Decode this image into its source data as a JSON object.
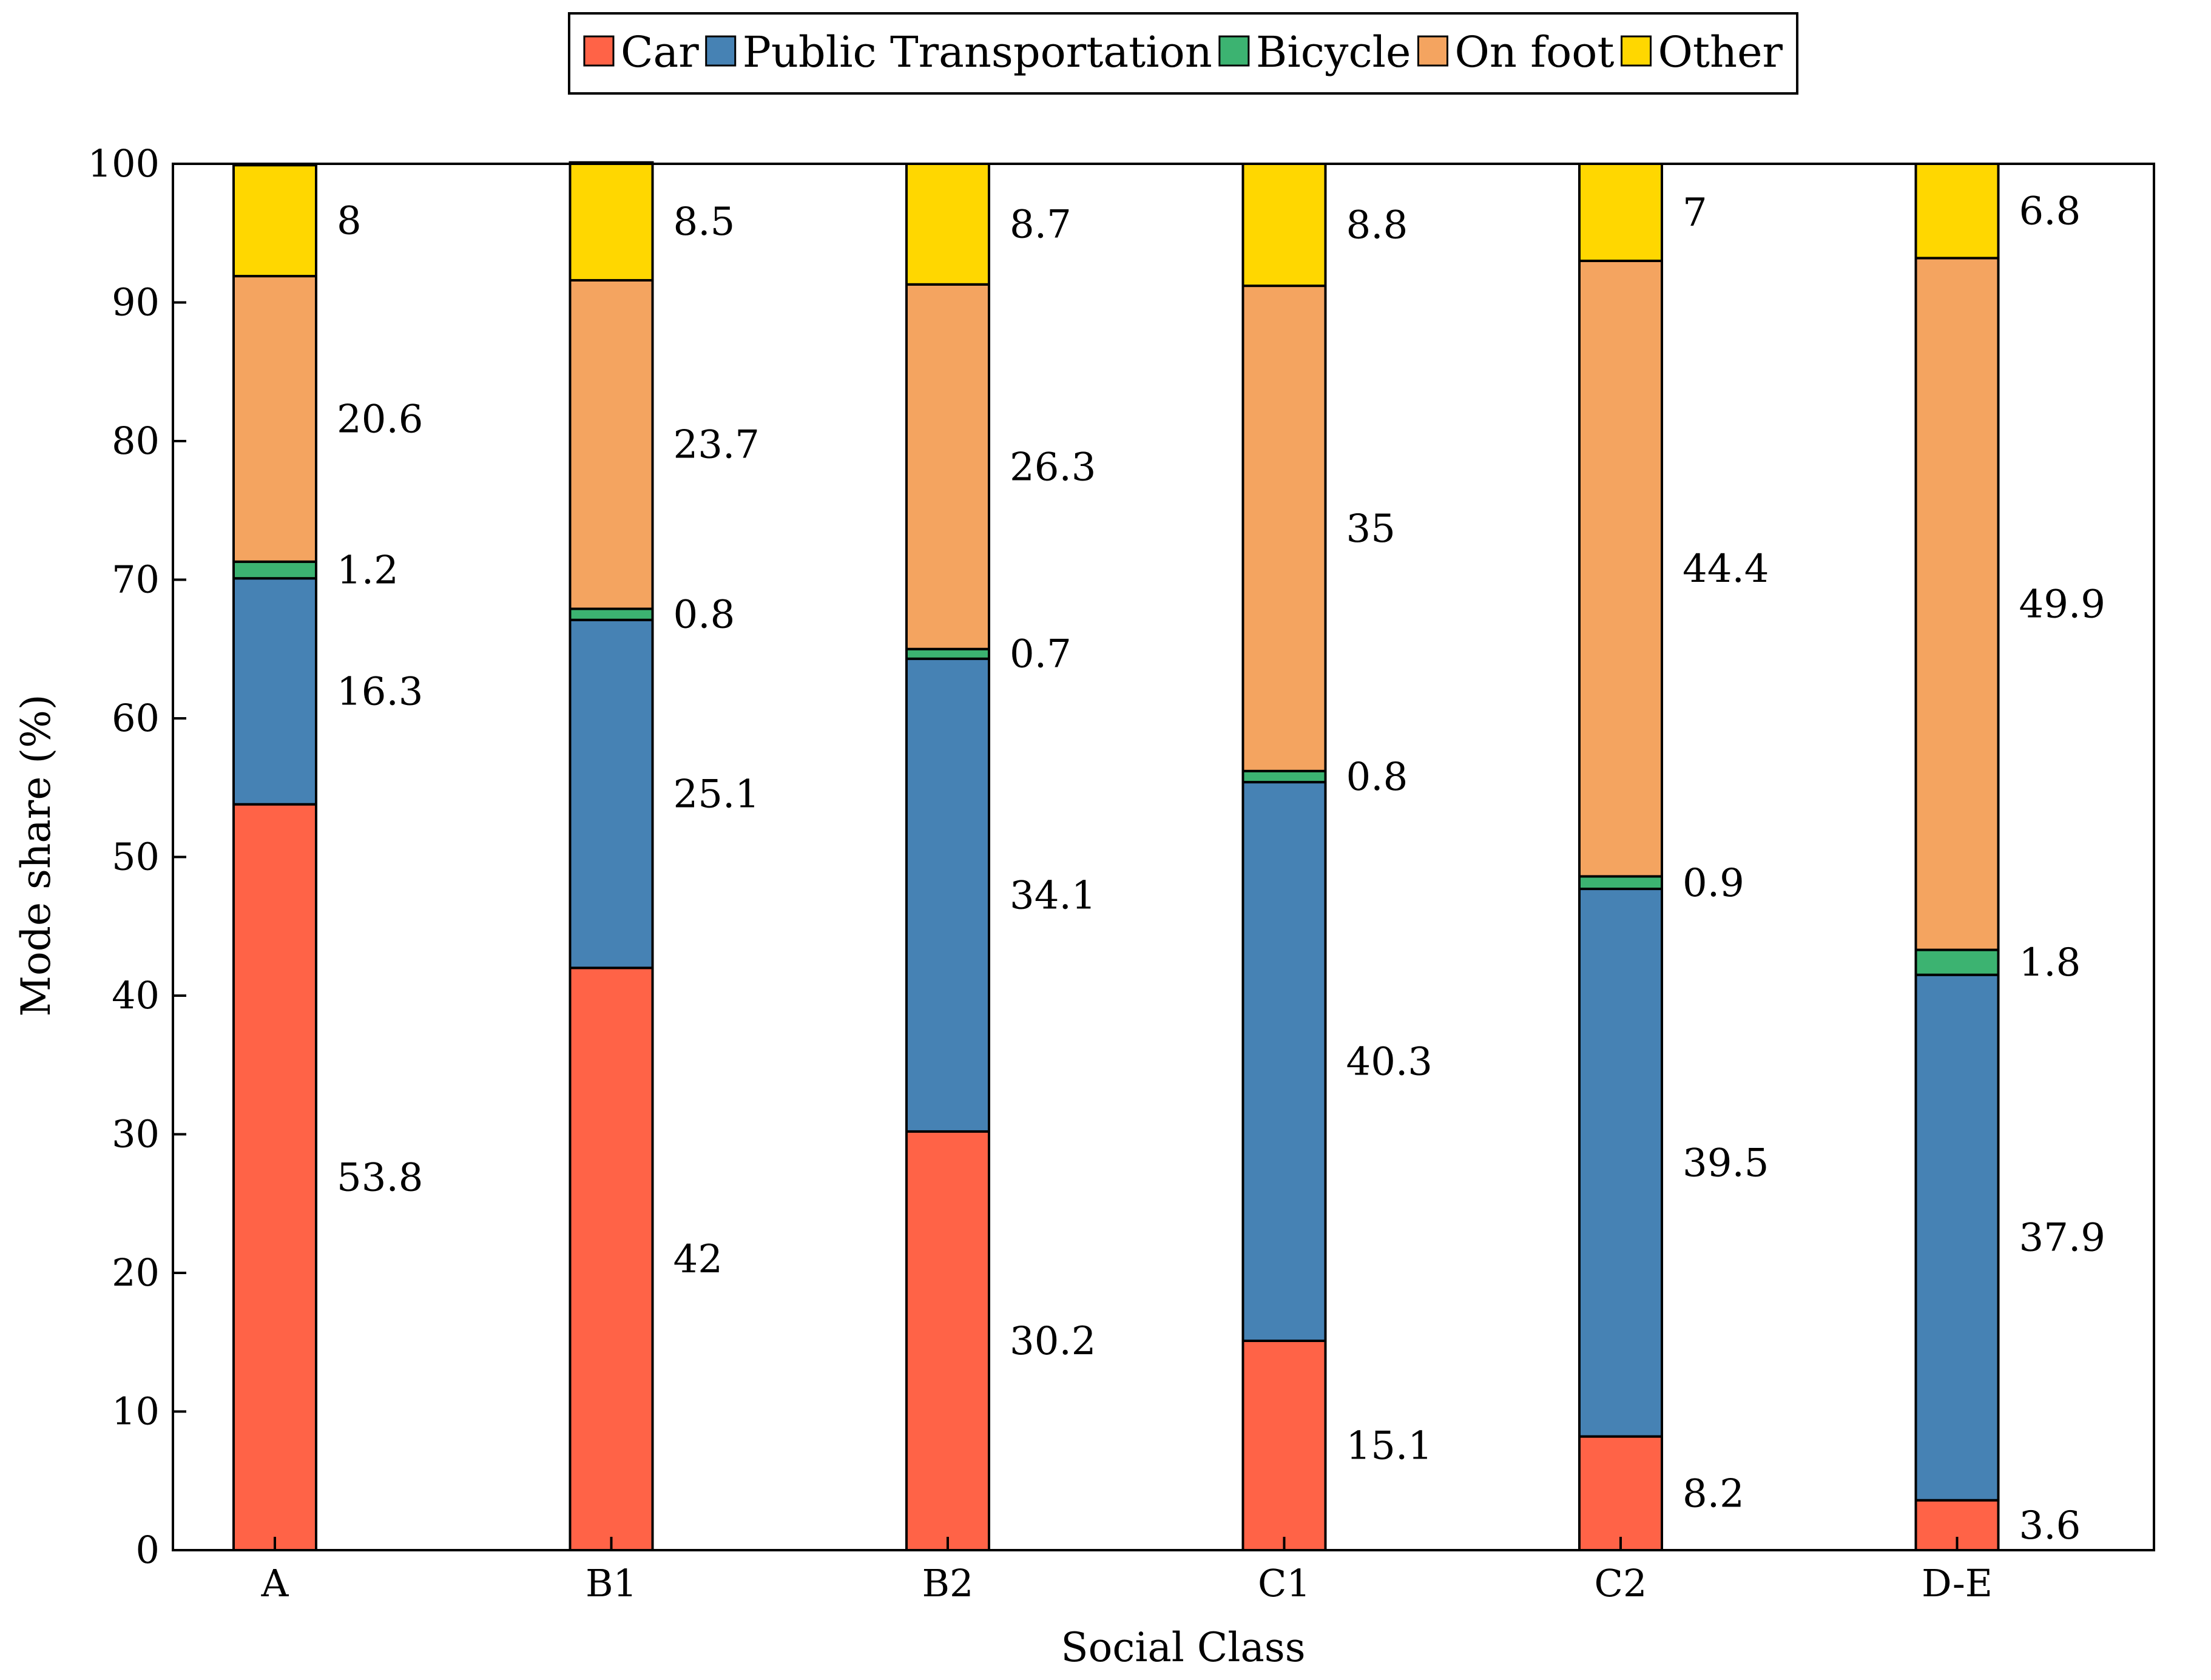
{
  "chart_data": {
    "type": "bar",
    "stacked": true,
    "title": "",
    "xlabel": "Social Class",
    "ylabel": "Mode share (%)",
    "ylim": [
      0,
      100
    ],
    "yticks": [
      0,
      10,
      20,
      30,
      40,
      50,
      60,
      70,
      80,
      90,
      100
    ],
    "grid": false,
    "legend_position": "top-center",
    "categories": [
      "A",
      "B1",
      "B2",
      "C1",
      "C2",
      "D-E"
    ],
    "series": [
      {
        "name": "Car",
        "color": "#ff6347",
        "values": [
          53.8,
          42,
          30.2,
          15.1,
          8.2,
          3.6
        ]
      },
      {
        "name": "Public Transportation",
        "color": "#4682b4",
        "values": [
          16.3,
          25.1,
          34.1,
          40.3,
          39.5,
          37.9
        ]
      },
      {
        "name": "Bicycle",
        "color": "#3cb371",
        "values": [
          1.2,
          0.8,
          0.7,
          0.8,
          0.9,
          1.8
        ]
      },
      {
        "name": "On foot",
        "color": "#f4a460",
        "values": [
          20.6,
          23.7,
          26.3,
          35,
          44.4,
          49.9
        ]
      },
      {
        "name": "Other",
        "color": "#ffd700",
        "values": [
          8,
          8.5,
          8.7,
          8.8,
          7,
          6.8
        ]
      }
    ],
    "data_labels": [
      [
        "53.8",
        "42",
        "30.2",
        "15.1",
        "8.2",
        "3.6"
      ],
      [
        "16.3",
        "25.1",
        "34.1",
        "40.3",
        "39.5",
        "37.9"
      ],
      [
        "1.2",
        "0.8",
        "0.7",
        "0.8",
        "0.9",
        "1.8"
      ],
      [
        "20.6",
        "23.7",
        "26.3",
        "35",
        "44.4",
        "49.9"
      ],
      [
        "8",
        "8.5",
        "8.7",
        "8.8",
        "7",
        "6.8"
      ]
    ]
  }
}
